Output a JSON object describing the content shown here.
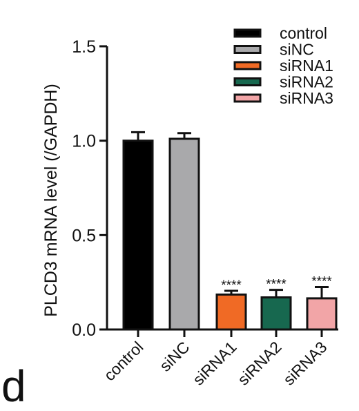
{
  "panel_label": "d",
  "chart_data": {
    "type": "bar",
    "title": "",
    "xlabel": "",
    "ylabel": "PLCD3 mRNA level (/GAPDH)",
    "ylim": [
      0,
      1.5
    ],
    "yticks": [
      0.0,
      0.5,
      1.0,
      1.5
    ],
    "ytick_labels": [
      "0.0",
      "0.5",
      "1.0",
      "1.5"
    ],
    "categories": [
      "control",
      "siNC",
      "siRNA1",
      "siRNA2",
      "siRNA3"
    ],
    "values": [
      1.0,
      1.01,
      0.185,
      0.17,
      0.165
    ],
    "errors": [
      0.045,
      0.03,
      0.02,
      0.04,
      0.06
    ],
    "significance": [
      "",
      "",
      "****",
      "****",
      "****"
    ],
    "colors": [
      "#000000",
      "#a9a9ab",
      "#f06a25",
      "#17684f",
      "#f2a5a7"
    ],
    "legend": {
      "placement": "top-right",
      "entries": [
        "control",
        "siNC",
        "siRNA1",
        "siRNA2",
        "siRNA3"
      ]
    },
    "grid": false
  }
}
